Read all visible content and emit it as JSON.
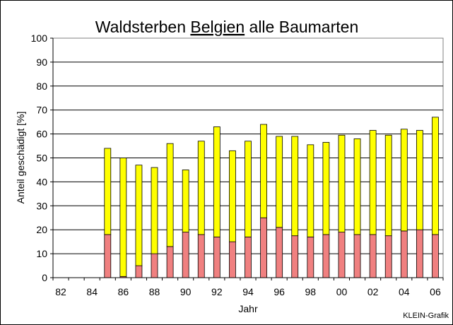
{
  "chart_data": {
    "type": "bar",
    "stacked": true,
    "title": {
      "prefix": "Waldsterben ",
      "underlined": "Belgien",
      "suffix": " alle Baumarten"
    },
    "xlabel": "Jahr",
    "ylabel": "Anteil geschädigt [%]",
    "ylim": [
      0,
      100
    ],
    "yticks": [
      0,
      10,
      20,
      30,
      40,
      50,
      60,
      70,
      80,
      90,
      100
    ],
    "grid": true,
    "categories": [
      "82",
      "83",
      "84",
      "85",
      "86",
      "87",
      "88",
      "89",
      "90",
      "91",
      "92",
      "93",
      "94",
      "95",
      "96",
      "97",
      "98",
      "99",
      "00",
      "01",
      "02",
      "03",
      "04",
      "05",
      "06"
    ],
    "xtick_labels": [
      "82",
      "84",
      "86",
      "88",
      "90",
      "92",
      "94",
      "96",
      "98",
      "00",
      "02",
      "04",
      "06"
    ],
    "series": [
      {
        "color": "#F08080",
        "values": [
          null,
          null,
          null,
          18,
          0.5,
          5,
          10,
          13,
          19,
          18,
          17,
          15,
          17,
          25,
          21,
          17.5,
          17,
          18,
          19,
          18,
          18,
          17.5,
          19.5,
          20,
          18
        ]
      },
      {
        "color": "#FFFF00",
        "values": [
          null,
          null,
          null,
          36,
          49.5,
          42,
          36,
          43,
          26,
          39,
          46,
          38,
          40,
          39,
          38,
          41.5,
          38.5,
          38.5,
          40.5,
          40,
          43.5,
          42,
          42.5,
          41.5,
          49
        ]
      }
    ],
    "credit": "KLEIN-Grafik"
  }
}
